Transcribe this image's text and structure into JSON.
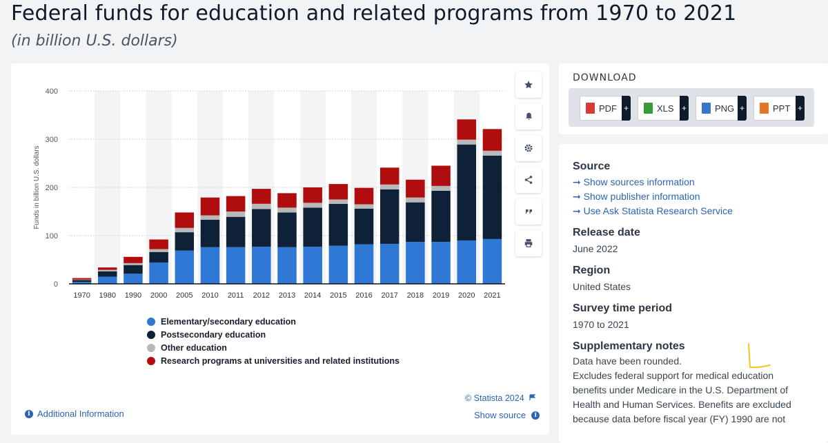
{
  "page": {
    "title": "Federal funds for education and related programs from 1970 to 2021",
    "subtitle": "(in billion U.S. dollars)"
  },
  "toolbar": {
    "icons": [
      "star-icon",
      "bell-icon",
      "gear-icon",
      "share-icon",
      "quote-icon",
      "print-icon"
    ]
  },
  "chart_data": {
    "type": "bar",
    "stacked": true,
    "ylabel": "Funds in billion U.S. dollars",
    "ylim": [
      0,
      400
    ],
    "yticks": [
      0,
      100,
      200,
      300,
      400
    ],
    "grid": true,
    "legend_position": "bottom",
    "categories": [
      "1970",
      "1980",
      "1990",
      "2000",
      "2005",
      "2010",
      "2011",
      "2012",
      "2013",
      "2014",
      "2015",
      "2016",
      "2017",
      "2018",
      "2019",
      "2020",
      "2021"
    ],
    "series": [
      {
        "name": "Elementary/secondary education",
        "color": "#2f78d6",
        "values": [
          4,
          15,
          21,
          44,
          69,
          76,
          76,
          77,
          76,
          77,
          79,
          82,
          83,
          87,
          87,
          90,
          93
        ]
      },
      {
        "name": "Postsecondary education",
        "color": "#0f2137",
        "values": [
          4,
          11,
          18,
          22,
          38,
          57,
          63,
          78,
          72,
          81,
          87,
          74,
          113,
          82,
          106,
          199,
          173
        ]
      },
      {
        "name": "Other education",
        "color": "#b8b8b8",
        "values": [
          1,
          3,
          4,
          6,
          9,
          9,
          11,
          11,
          10,
          10,
          9,
          9,
          10,
          10,
          10,
          10,
          10
        ]
      },
      {
        "name": "Research programs at universities and related institutions",
        "color": "#b00e0e",
        "values": [
          3,
          5,
          13,
          20,
          32,
          37,
          32,
          31,
          30,
          32,
          32,
          34,
          35,
          37,
          42,
          42,
          45
        ]
      }
    ]
  },
  "footer": {
    "credit": "© Statista 2024",
    "additional_info": "Additional Information",
    "show_source": "Show source"
  },
  "download": {
    "title": "DOWNLOAD",
    "buttons": [
      {
        "label": "PDF",
        "color": "#d83a3a"
      },
      {
        "label": "XLS",
        "color": "#3a9a3a"
      },
      {
        "label": "PNG",
        "color": "#3a76c8"
      },
      {
        "label": "PPT",
        "color": "#e3742a"
      }
    ]
  },
  "info": {
    "source_heading": "Source",
    "source_links": [
      "Show sources information",
      "Show publisher information",
      "Use Ask Statista Research Service"
    ],
    "release_heading": "Release date",
    "release_value": "June 2022",
    "region_heading": "Region",
    "region_value": "United States",
    "period_heading": "Survey time period",
    "period_value": "1970 to 2021",
    "notes_heading": "Supplementary notes",
    "notes_line1": "Data have been rounded.",
    "notes_line2": "Excludes federal support for medical education benefits under Medicare in the U.S. Department of Health and Human Services. Benefits are excluded because data before fiscal year (FY) 1990 are not"
  }
}
